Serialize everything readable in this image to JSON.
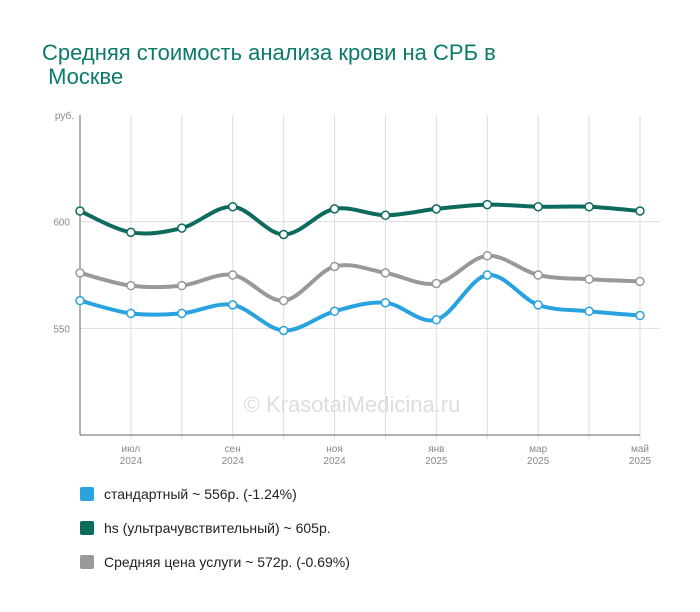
{
  "chart_data": {
    "type": "line",
    "title": "Средняя стоимость анализа крови на СРБ в Москве",
    "y_label": "руб.",
    "watermark": "© KrasotaiMedicina.ru",
    "categories": [
      null,
      "июл",
      null,
      "сен",
      null,
      "ноя",
      null,
      "янв",
      null,
      "мар",
      null,
      "май"
    ],
    "category_years": [
      null,
      "2024",
      null,
      "2024",
      null,
      "2024",
      null,
      "2025",
      null,
      "2025",
      null,
      "2025"
    ],
    "ylim": [
      500,
      650
    ],
    "yticks": [
      550,
      600
    ],
    "grid": true,
    "series": [
      {
        "name": "стандартный ~ 556р. (-1.24%)",
        "color": "#29a3e0",
        "values": [
          563,
          557,
          557,
          561,
          549,
          558,
          562,
          554,
          575,
          561,
          558,
          556
        ]
      },
      {
        "name": "hs (ультрачувствительный) ~ 605р.",
        "color": "#0d6b5e",
        "values": [
          605,
          595,
          597,
          607,
          594,
          606,
          603,
          606,
          608,
          607,
          607,
          605
        ]
      },
      {
        "name": "Средняя цена услуги ~ 572р. (-0.69%)",
        "color": "#999999",
        "values": [
          576,
          570,
          570,
          575,
          563,
          579,
          576,
          571,
          584,
          575,
          573,
          572
        ]
      }
    ]
  }
}
